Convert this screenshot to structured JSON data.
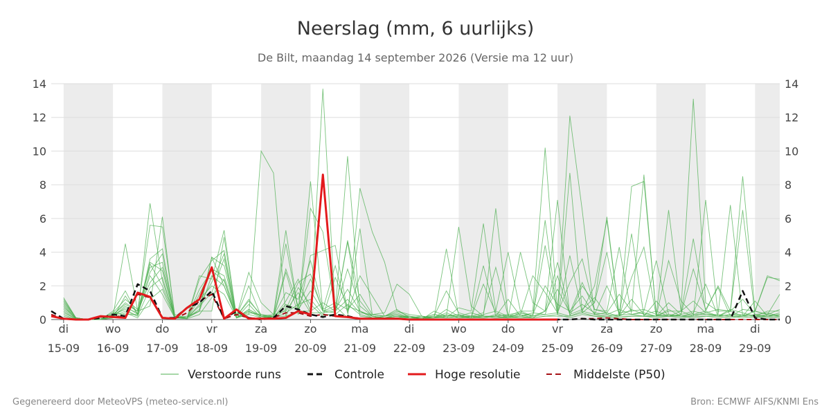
{
  "chart_data": {
    "type": "line",
    "title": "Neerslag (mm, 6 uurlijks)",
    "subtitle": "De Bilt, maandag 14 september 2026 (Versie ma 12 uur)",
    "ylim": [
      0,
      14
    ],
    "yticks": [
      0,
      2,
      4,
      6,
      8,
      10,
      12,
      14
    ],
    "xlim": [
      -0.25,
      14.5
    ],
    "x_tick_days": [
      "di",
      "wo",
      "do",
      "vr",
      "za",
      "zo",
      "ma",
      "di",
      "wo",
      "do",
      "vr",
      "za",
      "zo",
      "ma",
      "di"
    ],
    "x_tick_dates": [
      "15-09",
      "16-09",
      "17-09",
      "18-09",
      "19-09",
      "20-09",
      "21-09",
      "22-09",
      "23-09",
      "24-09",
      "25-09",
      "26-09",
      "27-09",
      "28-09",
      "29-09"
    ],
    "shaded_bands": [
      [
        0,
        1
      ],
      [
        2,
        3
      ],
      [
        4,
        5
      ],
      [
        6,
        7
      ],
      [
        8,
        9
      ],
      [
        10,
        11
      ],
      [
        12,
        13
      ],
      [
        14,
        14.5
      ]
    ],
    "grid": true,
    "legend_position": "bottom",
    "legend": {
      "members": "Verstoorde runs",
      "control": "Controle",
      "hires": "Hoge resolutie",
      "median": "Middelste (P50)"
    },
    "colors": {
      "members": "#4caf50",
      "control": "#111111",
      "hires": "#e31a1c",
      "median": "#a50f15",
      "band": "#ececec",
      "grid": "#dddddd"
    },
    "series": [
      {
        "name": "Hoge resolutie",
        "x": [
          -0.25,
          0,
          0.25,
          0.5,
          0.75,
          1,
          1.25,
          1.5,
          1.75,
          2,
          2.25,
          2.5,
          2.75,
          3,
          3.25,
          3.5,
          3.75,
          4,
          4.25,
          4.5,
          4.75,
          5,
          5.25,
          5.5,
          5.75,
          6,
          6.25,
          6.5,
          6.75,
          7,
          7.25,
          7.5,
          7.75,
          8,
          8.25,
          8.5,
          8.75,
          9,
          9.25,
          9.5,
          9.75,
          10
        ],
        "values": [
          0.2,
          0.05,
          0,
          0,
          0.2,
          0.15,
          0.1,
          1.6,
          1.35,
          0.1,
          0.05,
          0.7,
          1.2,
          3.1,
          0.05,
          0.6,
          0.05,
          0.05,
          0.05,
          0.1,
          0.5,
          0.3,
          8.6,
          0.2,
          0.15,
          0.05,
          0.05,
          0.05,
          0.05,
          0,
          0,
          0,
          0,
          0,
          0,
          0,
          0,
          0,
          0,
          0,
          0,
          0
        ]
      },
      {
        "name": "Controle",
        "x": [
          -0.25,
          0,
          0.25,
          0.5,
          0.75,
          1,
          1.25,
          1.5,
          1.75,
          2,
          2.25,
          2.5,
          2.75,
          3,
          3.25,
          3.5,
          3.75,
          4,
          4.25,
          4.5,
          4.75,
          5,
          5.25,
          5.5,
          5.75,
          6,
          6.25,
          6.5,
          6.75,
          7,
          7.25,
          7.5,
          7.75,
          8,
          8.25,
          8.5,
          8.75,
          9,
          9.25,
          9.5,
          9.75,
          10,
          10.25,
          10.5,
          10.75,
          11,
          11.25,
          11.5,
          11.75,
          12,
          12.25,
          12.5,
          12.75,
          13,
          13.25,
          13.5,
          13.75,
          14,
          14.25,
          14.5
        ],
        "values": [
          0.5,
          0.05,
          0,
          0,
          0.1,
          0.3,
          0.2,
          2.1,
          1.7,
          0.1,
          0.1,
          0.7,
          1.0,
          1.7,
          0.05,
          0.5,
          0.1,
          0,
          0.1,
          0.8,
          0.6,
          0.3,
          0.15,
          0.3,
          0.2,
          0.05,
          0.05,
          0.05,
          0.05,
          0,
          0,
          0,
          0,
          0,
          0,
          0,
          0,
          0,
          0,
          0,
          0,
          0,
          0,
          0.05,
          0,
          0,
          0,
          0,
          0,
          0,
          0,
          0,
          0,
          0,
          0,
          0,
          1.7,
          0.1,
          0,
          0
        ]
      },
      {
        "name": "Middelste (P50)",
        "x": [
          -0.25,
          0,
          0.25,
          0.5,
          0.75,
          1,
          1.25,
          1.5,
          1.75,
          2,
          2.25,
          2.5,
          2.75,
          3,
          3.25,
          3.5,
          3.75,
          4,
          4.25,
          4.5,
          4.75,
          5,
          5.25,
          5.5,
          5.75,
          6,
          6.25,
          6.5,
          6.75,
          7,
          7.25,
          7.5,
          7.75,
          8,
          8.25,
          8.5,
          8.75,
          9,
          9.25,
          9.5,
          9.75,
          10,
          10.25,
          10.5,
          10.75,
          11,
          11.25,
          11.5,
          11.75,
          12,
          12.25,
          12.5,
          12.75,
          13,
          13.25,
          13.5,
          13.75,
          14,
          14.25,
          14.5
        ],
        "values": [
          0.3,
          0.05,
          0,
          0,
          0.15,
          0.2,
          0.15,
          1.5,
          1.3,
          0.1,
          0.05,
          0.4,
          1.1,
          1.5,
          0.05,
          0.3,
          0.1,
          0.05,
          0.1,
          0.4,
          0.4,
          0.2,
          0.3,
          0.2,
          0.15,
          0.05,
          0.05,
          0.05,
          0.05,
          0,
          0,
          0,
          0,
          0,
          0,
          0,
          0,
          0,
          0,
          0,
          0,
          0,
          0,
          0.05,
          0.05,
          0.1,
          0.05,
          0,
          0,
          0,
          0,
          0,
          0,
          0,
          0,
          0,
          0,
          0,
          0,
          0
        ]
      }
    ],
    "ensemble_members": [
      [
        1.3,
        0.1,
        0,
        0,
        0.2,
        4.5,
        0.5,
        0.8,
        6.1,
        0.1,
        0.2,
        0.5,
        0.5,
        4.9,
        0.1,
        0.3,
        10.0,
        8.7,
        0.2,
        0.5,
        0.5,
        13.7,
        0.5,
        9.7,
        0.5,
        0.2,
        0.1,
        0.1,
        0.2,
        0,
        0.5,
        0.2,
        5.5,
        0.8,
        0.2,
        6.6,
        0.2,
        0.5,
        0.5,
        10.2,
        0.5,
        12.1,
        6.5,
        0.3,
        0.4,
        1.5,
        0.5,
        8.6,
        0.2,
        0.5,
        0.5,
        13.1,
        1.0,
        0.5,
        0.5,
        8.5,
        0.5,
        2.5,
        2.4
      ],
      [
        0.8,
        0.05,
        0,
        0,
        0.5,
        1.7,
        0.3,
        6.9,
        2.3,
        0.2,
        0.1,
        2.6,
        2.4,
        5.3,
        0.2,
        2.8,
        1.0,
        0.3,
        5.3,
        0.5,
        8.2,
        0.5,
        0.8,
        0.1,
        7.8,
        5.2,
        3.4,
        0.5,
        0.3,
        0.2,
        0.1,
        4.2,
        0.2,
        0.1,
        3.2,
        0.2,
        0.1,
        4.0,
        1.0,
        0.5,
        7.1,
        0.2,
        2.0,
        1.0,
        6.1,
        0.2,
        7.9,
        8.2,
        0.3,
        6.5,
        0.5,
        0.2,
        7.1,
        0.3,
        6.8,
        0.2,
        0.5,
        2.6,
        2.3
      ],
      [
        1.2,
        0.1,
        0,
        0.05,
        0.3,
        1.0,
        0.5,
        5.6,
        5.5,
        0.3,
        0.1,
        0.5,
        3.7,
        2.0,
        0.1,
        0.5,
        0.2,
        0.2,
        4.5,
        0.5,
        6.6,
        5.2,
        0.5,
        4.6,
        0.2,
        0.1,
        0.1,
        0.2,
        0.1,
        0.1,
        0.3,
        0.1,
        0.7,
        0.5,
        5.7,
        0.5,
        4.0,
        0.5,
        0.2,
        5.9,
        0.3,
        8.7,
        0.5,
        2.0,
        5.9,
        0.2,
        5.1,
        0.2,
        1.1,
        0.2,
        0.3,
        4.8,
        0.5,
        2.0,
        0.5,
        6.5,
        0.2,
        0.5,
        0.5
      ],
      [
        0.5,
        0,
        0,
        0,
        0.1,
        1.4,
        0.3,
        3.6,
        4.2,
        0.1,
        0.05,
        2.4,
        3.5,
        4.1,
        0.2,
        2.0,
        0.2,
        0.1,
        2.8,
        0.3,
        3.8,
        4.1,
        4.4,
        0.5,
        5.4,
        0.3,
        0.4,
        2.1,
        1.5,
        0.2,
        0.1,
        0.6,
        0.2,
        0.1,
        2.1,
        0.4,
        0.1,
        0.4,
        0.2,
        4.4,
        0.3,
        3.8,
        0.4,
        1.0,
        4.0,
        0.2,
        2.5,
        4.3,
        0.2,
        1.0,
        0.3,
        3.0,
        0.6,
        1.9,
        0.2,
        0.6,
        0.5,
        0.3,
        1.5
      ],
      [
        0.9,
        0.05,
        0,
        0,
        0.4,
        1.2,
        0.6,
        3.1,
        3.4,
        0.2,
        0.1,
        1.5,
        3.0,
        2.6,
        0.2,
        1.1,
        0.3,
        0.2,
        3.0,
        0.8,
        2.4,
        0.6,
        3.2,
        0.4,
        2.6,
        1.4,
        0.2,
        0.5,
        0.2,
        0.1,
        0.2,
        1.7,
        0.4,
        0.2,
        0.4,
        3.1,
        0.2,
        0.3,
        0.1,
        0.5,
        3.4,
        0.4,
        2.2,
        0.6,
        0.5,
        4.3,
        0.3,
        0.5,
        3.5,
        0.3,
        0.2,
        0.4,
        2.1,
        0.2,
        0.5,
        1.2,
        0.3,
        0.4,
        0.2
      ],
      [
        0.3,
        0,
        0,
        0,
        0.2,
        0.7,
        0.4,
        2.8,
        3.9,
        0.1,
        0.1,
        0.6,
        3.7,
        3.2,
        0.1,
        0.6,
        0.2,
        0.1,
        1.1,
        2.4,
        0.5,
        1.0,
        0.5,
        4.7,
        1.1,
        0.2,
        0.1,
        0.3,
        0.1,
        0.2,
        0.1,
        0.2,
        0.2,
        0.4,
        0.2,
        0.1,
        0.2,
        0.3,
        2.6,
        1.6,
        0.4,
        2.2,
        3.6,
        0.6,
        0.4,
        0.2,
        1.2,
        0.3,
        0.2,
        3.5,
        1.1,
        0.3,
        0.5,
        0.2,
        0.3,
        0.2,
        1.1,
        0.2,
        0.3
      ],
      [
        1.0,
        0.1,
        0,
        0,
        0.2,
        0.8,
        0.3,
        3.4,
        2.9,
        0.2,
        0.1,
        0.9,
        2.2,
        3.9,
        0.1,
        0.9,
        0.1,
        0.2,
        1.6,
        1.2,
        3.5,
        0.6,
        1.0,
        0.6,
        1.5,
        0.3,
        0.2,
        0.6,
        0.1,
        0.1,
        0.1,
        0.4,
        0.1,
        0.2,
        0.2,
        0.2,
        1.2,
        0.2,
        0.3,
        2.0,
        0.9,
        0.5,
        1.4,
        0.3,
        2.0,
        0.4,
        0.5,
        0.6,
        0.3,
        0.2,
        0.5,
        1.1,
        0.4,
        0.6,
        0.5,
        0.2,
        0.5,
        0.3,
        0.6
      ],
      [
        0.6,
        0.05,
        0,
        0,
        0.3,
        0.9,
        0.5,
        2.2,
        3.1,
        0.1,
        0.1,
        1.8,
        2.9,
        2.3,
        0.1,
        0.4,
        0.3,
        0.1,
        0.6,
        2.2,
        2.7,
        0.5,
        0.4,
        3.0,
        0.8,
        0.2,
        0.1,
        0.2,
        0.2,
        0.1,
        0.3,
        0.2,
        0.3,
        0.1,
        0.3,
        0.5,
        0.2,
        0.2,
        0.4,
        0.3,
        2.6,
        0.3,
        0.6,
        1.3,
        0.3,
        0.2,
        0.6,
        0.3,
        0.5,
        0.2,
        0.3,
        0.5,
        0.3,
        0.2,
        0.6,
        0.4,
        0.2,
        0.2,
        0.3
      ],
      [
        0.4,
        0.05,
        0,
        0,
        0.2,
        0.5,
        0.2,
        1.9,
        2.5,
        0.1,
        0.1,
        0.8,
        1.6,
        3.6,
        0.1,
        0.6,
        0.2,
        0.1,
        0.9,
        0.6,
        1.7,
        0.5,
        0.6,
        1.8,
        0.5,
        0.2,
        0.1,
        0.2,
        0.1,
        0.1,
        0.1,
        0.3,
        0.1,
        0.2,
        0.1,
        0.2,
        0.3,
        0.4,
        0.2,
        0.5,
        1.8,
        0.4,
        0.9,
        0.4,
        0.3,
        0.6,
        0.3,
        0.2,
        0.2,
        0.6,
        0.2,
        0.2,
        0.4,
        0.2,
        0.3,
        0.3,
        0.2,
        0.3,
        0.2
      ],
      [
        0.7,
        0.1,
        0,
        0,
        0.3,
        0.6,
        0.2,
        3.3,
        2.0,
        0.2,
        0.1,
        0.5,
        2.6,
        2.0,
        0.2,
        1.2,
        0.2,
        0.3,
        0.5,
        1.6,
        0.4,
        0.4,
        0.5,
        1.2,
        0.4,
        0.3,
        0.2,
        0.4,
        0.1,
        0.1,
        0.2,
        0.1,
        0.2,
        0.2,
        0.1,
        0.3,
        0.2,
        0.1,
        0.2,
        0.3,
        0.4,
        0.2,
        0.5,
        0.3,
        0.2,
        0.3,
        0.3,
        0.4,
        0.2,
        0.3,
        0.2,
        0.3,
        0.3,
        0.3,
        0.2,
        0.2,
        0.3,
        0.2,
        0.4
      ],
      [
        0.2,
        0,
        0,
        0,
        0.1,
        0.4,
        0.1,
        1.2,
        1.8,
        0.1,
        0.05,
        0.3,
        1.3,
        2.4,
        0.1,
        0.3,
        0.1,
        0.1,
        0.4,
        0.9,
        1.2,
        0.3,
        0.3,
        0.9,
        0.3,
        0.1,
        0.1,
        0.1,
        0.1,
        0.05,
        0.1,
        0.1,
        0.1,
        0.1,
        0.1,
        0.2,
        0.1,
        0.1,
        0.1,
        0.2,
        0.3,
        0.1,
        0.3,
        0.2,
        0.1,
        0.2,
        0.2,
        0.2,
        0.1,
        0.2,
        0.1,
        0.2,
        0.2,
        0.1,
        0.2,
        0.1,
        0.2,
        0.1,
        0.2
      ],
      [
        1.1,
        0.1,
        0,
        0,
        0.4,
        0.3,
        0.3,
        2.6,
        1.5,
        0.1,
        0.1,
        1.2,
        2.0,
        1.5,
        0.1,
        0.5,
        0.1,
        0.2,
        0.2,
        1.9,
        0.9,
        0.2,
        2.5,
        0.8,
        0.5,
        0.1,
        0.2,
        0.3,
        0.1,
        0.1,
        0.1,
        0.2,
        0.3,
        0.1,
        0.2,
        0.1,
        0.1,
        0.2,
        0.1,
        0.2,
        0.2,
        0.2,
        0.4,
        0.2,
        0.2,
        0.1,
        0.2,
        0.2,
        0.2,
        0.2,
        0.2,
        0.1,
        0.2,
        0.2,
        0.1,
        0.2,
        0.1,
        0.2,
        0.1
      ]
    ],
    "ensemble_x_start": 0,
    "ensemble_x_step": 0.25
  },
  "footer": {
    "left": "Gegenereerd door MeteoVPS (meteo-service.nl)",
    "right": "Bron: ECMWF AIFS/KNMI Ens"
  }
}
